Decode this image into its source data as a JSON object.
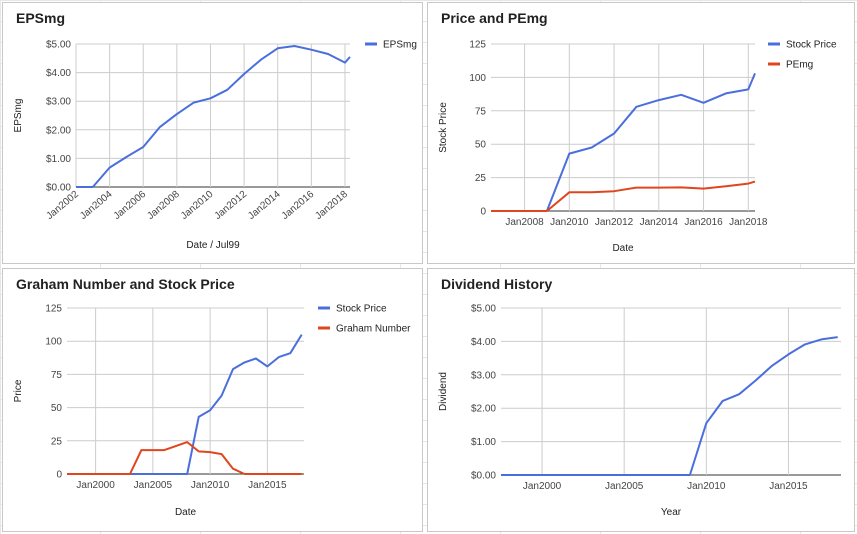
{
  "chart_data": [
    {
      "type": "line",
      "title": "EPSmg",
      "xlabel": "Date / Jul99",
      "ylabel": "EPSmg",
      "x": [
        2002,
        2003,
        2004,
        2005,
        2006,
        2007,
        2008,
        2009,
        2010,
        2011,
        2012,
        2013,
        2014,
        2015,
        2016,
        2017,
        2018,
        2018.3
      ],
      "series": [
        {
          "name": "EPSmg",
          "color": "#4a6fdc",
          "values": [
            0,
            0,
            0.68,
            1.05,
            1.4,
            2.1,
            2.55,
            2.95,
            3.1,
            3.4,
            3.95,
            4.45,
            4.85,
            4.93,
            4.8,
            4.65,
            4.35,
            4.55
          ]
        }
      ],
      "xlim": [
        2002,
        2018.3
      ],
      "ylim": [
        0,
        5
      ],
      "y_ticks": [
        "$0.00",
        "$1.00",
        "$2.00",
        "$3.00",
        "$4.00",
        "$5.00"
      ],
      "x_ticks": [
        "Jan2002",
        "Jan2004",
        "Jan2006",
        "Jan2008",
        "Jan2010",
        "Jan2012",
        "Jan2014",
        "Jan2016",
        "Jan2018"
      ],
      "x_tick_values": [
        2002,
        2004,
        2006,
        2008,
        2010,
        2012,
        2014,
        2016,
        2018
      ],
      "legend": "top-right",
      "grid": true
    },
    {
      "type": "line",
      "title": "Price and PEmg",
      "xlabel": "Date",
      "ylabel": "Stock Price",
      "x": [
        2006.5,
        2009,
        2010,
        2011,
        2012,
        2013,
        2014,
        2015,
        2016,
        2017,
        2018,
        2018.3
      ],
      "series": [
        {
          "name": "Stock Price",
          "color": "#4a6fdc",
          "values": [
            0,
            0,
            43,
            47.5,
            58,
            78,
            83,
            87,
            81,
            88,
            91,
            103
          ]
        },
        {
          "name": "PEmg",
          "color": "#e0461d",
          "values": [
            0,
            0,
            14,
            14,
            14.8,
            17.5,
            17.5,
            17.7,
            16.8,
            18.5,
            20.5,
            22
          ]
        }
      ],
      "xlim": [
        2006.5,
        2018.3
      ],
      "ylim": [
        0,
        125
      ],
      "y_ticks": [
        "0",
        "25",
        "50",
        "75",
        "100",
        "125"
      ],
      "x_ticks": [
        "Jan2008",
        "Jan2010",
        "Jan2012",
        "Jan2014",
        "Jan2016",
        "Jan2018"
      ],
      "x_tick_values": [
        2008,
        2010,
        2012,
        2014,
        2016,
        2018
      ],
      "legend": "top-right",
      "grid": true
    },
    {
      "type": "line",
      "title": "Graham Number and Stock Price",
      "xlabel": "Date",
      "ylabel": "Price",
      "x": [
        1997.5,
        2000,
        2002,
        2003,
        2004,
        2005,
        2006,
        2007,
        2008,
        2009,
        2010,
        2011,
        2012,
        2013,
        2014,
        2015,
        2016,
        2017,
        2018
      ],
      "series": [
        {
          "name": "Stock Price",
          "color": "#4a6fdc",
          "values": [
            0,
            0,
            0,
            0,
            0,
            0,
            0,
            0,
            0,
            43,
            48,
            59,
            79,
            84,
            87,
            81,
            88,
            91,
            105
          ]
        },
        {
          "name": "Graham Number",
          "color": "#e0461d",
          "values": [
            0,
            0,
            0,
            0,
            18,
            18,
            18,
            21,
            24,
            17,
            16.5,
            15,
            4,
            0,
            0,
            0,
            0,
            0,
            0
          ]
        }
      ],
      "xlim": [
        1997.5,
        2018.2
      ],
      "ylim": [
        0,
        125
      ],
      "y_ticks": [
        "0",
        "25",
        "50",
        "75",
        "100",
        "125"
      ],
      "x_ticks": [
        "Jan2000",
        "Jan2005",
        "Jan2010",
        "Jan2015"
      ],
      "x_tick_values": [
        2000,
        2005,
        2010,
        2015
      ],
      "legend": "top-right",
      "grid": true
    },
    {
      "type": "line",
      "title": "Dividend History",
      "xlabel": "Year",
      "ylabel": "Dividend",
      "x": [
        1997.5,
        2000,
        2005,
        2008,
        2009,
        2010,
        2011,
        2012,
        2013,
        2014,
        2015,
        2016,
        2017,
        2018
      ],
      "series": [
        {
          "name": "",
          "color": "#4a6fdc",
          "values": [
            0,
            0,
            0,
            0,
            0,
            1.55,
            2.22,
            2.42,
            2.83,
            3.27,
            3.61,
            3.91,
            4.06,
            4.13
          ]
        }
      ],
      "xlim": [
        1997.5,
        2018.2
      ],
      "ylim": [
        0,
        5
      ],
      "y_ticks": [
        "$0.00",
        "$1.00",
        "$2.00",
        "$3.00",
        "$4.00",
        "$5.00"
      ],
      "x_ticks": [
        "Jan2000",
        "Jan2005",
        "Jan2010",
        "Jan2015"
      ],
      "x_tick_values": [
        2000,
        2005,
        2010,
        2015
      ],
      "legend": "none",
      "grid": true
    }
  ]
}
